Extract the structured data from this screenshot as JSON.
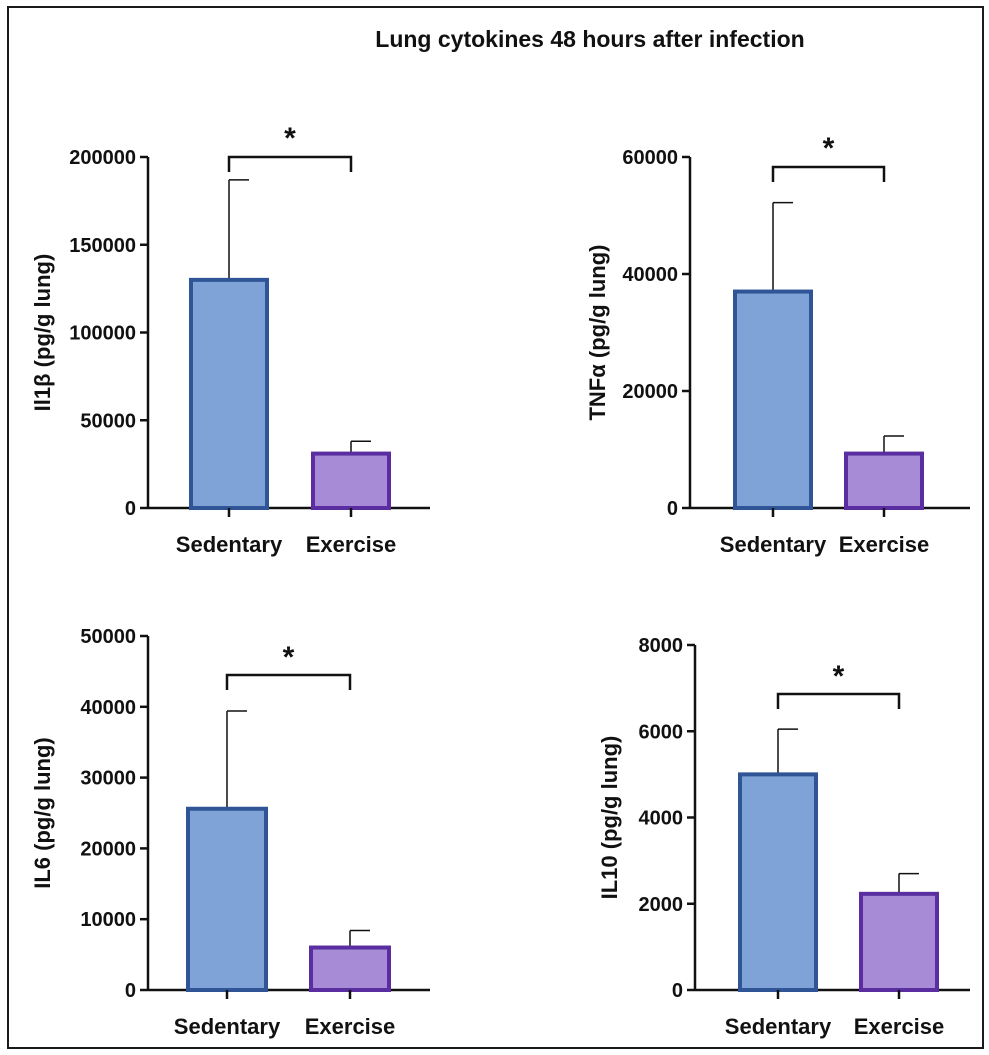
{
  "title": "Lung cytokines 48 hours after infection",
  "colors": {
    "sedentary_fill": "#7fa3d6",
    "sedentary_stroke": "#2f5597",
    "exercise_fill": "#a78bd6",
    "exercise_stroke": "#5a2ea0",
    "axis": "#111111"
  },
  "chart_data": [
    {
      "type": "bar",
      "panel": "il1b",
      "ylabel": "Il1β (pg/g lung)",
      "categories": [
        "Sedentary",
        "Exercise"
      ],
      "values": [
        130000,
        31000
      ],
      "error": [
        57000,
        7000
      ],
      "ylim": [
        0,
        200000
      ],
      "yticks": [
        0,
        50000,
        100000,
        150000,
        200000
      ],
      "significance": "*"
    },
    {
      "type": "bar",
      "panel": "tnfa",
      "ylabel": "TNFα (pg/g lung)",
      "categories": [
        "Sedentary",
        "Exercise"
      ],
      "values": [
        37000,
        9300
      ],
      "error": [
        15200,
        3000
      ],
      "ylim": [
        0,
        60000
      ],
      "yticks": [
        0,
        20000,
        40000,
        60000
      ],
      "significance": "*"
    },
    {
      "type": "bar",
      "panel": "il6",
      "ylabel": "IL6 (pg/g lung)",
      "categories": [
        "Sedentary",
        "Exercise"
      ],
      "values": [
        25600,
        6000
      ],
      "error": [
        13800,
        2400
      ],
      "ylim": [
        0,
        50000
      ],
      "yticks": [
        0,
        10000,
        20000,
        30000,
        40000,
        50000
      ],
      "significance": "*"
    },
    {
      "type": "bar",
      "panel": "il10",
      "ylabel": "IL10 (pg/g lung)",
      "categories": [
        "Sedentary",
        "Exercise"
      ],
      "values": [
        5000,
        2230
      ],
      "error": [
        1050,
        470
      ],
      "ylim": [
        0,
        8000
      ],
      "yticks": [
        0,
        2000,
        4000,
        6000,
        8000
      ],
      "significance": "*"
    }
  ]
}
